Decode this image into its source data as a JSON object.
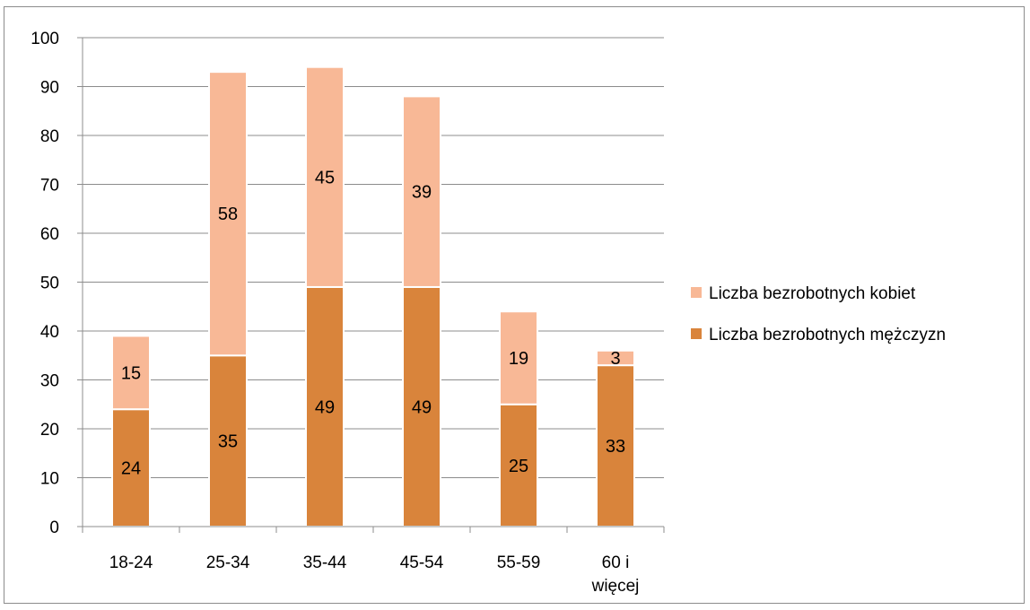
{
  "chart_data": {
    "type": "bar",
    "stacked": true,
    "categories": [
      [
        "18-24"
      ],
      [
        "25-34"
      ],
      [
        "35-44"
      ],
      [
        "45-54"
      ],
      [
        "55-59"
      ],
      [
        "60 i",
        "więcej"
      ]
    ],
    "series": [
      {
        "name": "Liczba bezrobotnych mężczyzn",
        "color": "#d9843b",
        "values": [
          24,
          35,
          49,
          49,
          25,
          33
        ]
      },
      {
        "name": "Liczba bezrobotnych kobiet",
        "color": "#f8b896",
        "values": [
          15,
          58,
          45,
          39,
          19,
          3
        ]
      }
    ],
    "legend_order": [
      1,
      0
    ],
    "legend_position": "right",
    "ylim": [
      0,
      100
    ],
    "yticks": [
      0,
      10,
      20,
      30,
      40,
      50,
      60,
      70,
      80,
      90,
      100
    ],
    "grid": true,
    "title": "",
    "xlabel": "",
    "ylabel": ""
  }
}
